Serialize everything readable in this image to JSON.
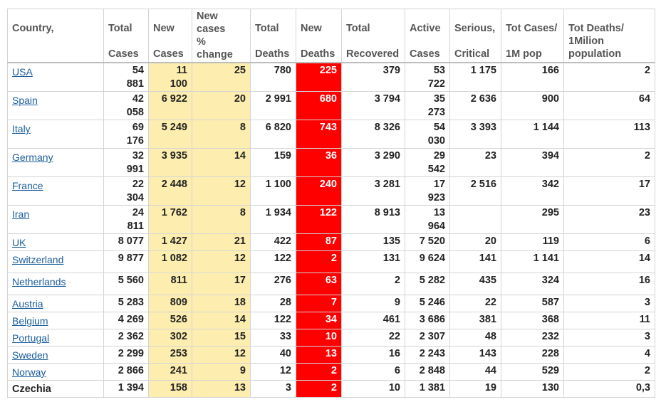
{
  "headers": {
    "country": "Country,",
    "total_cases": [
      "Total",
      "Cases"
    ],
    "new_cases": [
      "New",
      "Cases"
    ],
    "pct_change": [
      "New",
      "cases",
      "%",
      "change"
    ],
    "total_deaths": [
      "Total",
      "Deaths"
    ],
    "new_deaths": [
      "New",
      "Deaths"
    ],
    "total_recovered": [
      "Total",
      "Recovered"
    ],
    "active_cases": [
      "Active",
      "Cases"
    ],
    "serious": [
      "Serious,",
      "Critical"
    ],
    "tot_cases_1m": [
      "Tot Cases/",
      "1M pop"
    ],
    "tot_deaths_1m": [
      "Tot Deaths/",
      "1Milion",
      "population"
    ]
  },
  "colors": {
    "new_cases_bg": "#fdeeb0",
    "new_deaths_bg": "#ff0000",
    "link": "#1a5d9c"
  },
  "rows": [
    {
      "country": "USA",
      "link": true,
      "total_cases": [
        "54",
        "881"
      ],
      "new_cases": [
        "11",
        "100"
      ],
      "pct_change": "25",
      "total_deaths": "780",
      "new_deaths": "225",
      "recovered": "379",
      "active": [
        "53",
        "722"
      ],
      "serious": "1 175",
      "cases_1m": "166",
      "deaths_1m": "2"
    },
    {
      "country": "Spain",
      "link": true,
      "total_cases": [
        "42",
        "058"
      ],
      "new_cases": [
        "6 922"
      ],
      "pct_change": "20",
      "total_deaths": "2 991",
      "new_deaths": "680",
      "recovered": "3 794",
      "active": [
        "35",
        "273"
      ],
      "serious": "2 636",
      "cases_1m": "900",
      "deaths_1m": "64"
    },
    {
      "country": "Italy",
      "link": true,
      "total_cases": [
        "69",
        "176"
      ],
      "new_cases": [
        "5 249"
      ],
      "pct_change": "8",
      "total_deaths": "6 820",
      "new_deaths": "743",
      "recovered": "8 326",
      "active": [
        "54",
        "030"
      ],
      "serious": "3 393",
      "cases_1m": "1 144",
      "deaths_1m": "113"
    },
    {
      "country": "Germany",
      "link": true,
      "total_cases": [
        "32",
        "991"
      ],
      "new_cases": [
        "3 935"
      ],
      "pct_change": "14",
      "total_deaths": "159",
      "new_deaths": "36",
      "recovered": "3 290",
      "active": [
        "29",
        "542"
      ],
      "serious": "23",
      "cases_1m": "394",
      "deaths_1m": "2"
    },
    {
      "country": "France",
      "link": true,
      "total_cases": [
        "22",
        "304"
      ],
      "new_cases": [
        "2 448"
      ],
      "pct_change": "12",
      "total_deaths": "1 100",
      "new_deaths": "240",
      "recovered": "3 281",
      "active": [
        "17",
        "923"
      ],
      "serious": "2 516",
      "cases_1m": "342",
      "deaths_1m": "17"
    },
    {
      "country": "Iran",
      "link": true,
      "total_cases": [
        "24",
        "811"
      ],
      "new_cases": [
        "1 762"
      ],
      "pct_change": "8",
      "total_deaths": "1 934",
      "new_deaths": "122",
      "recovered": "8 913",
      "active": [
        "13",
        "964"
      ],
      "serious": "",
      "cases_1m": "295",
      "deaths_1m": "23"
    },
    {
      "country": "UK",
      "link": true,
      "total_cases": [
        "8 077"
      ],
      "new_cases": [
        "1 427"
      ],
      "pct_change": "21",
      "total_deaths": "422",
      "new_deaths": "87",
      "recovered": "135",
      "active": [
        "7 520"
      ],
      "serious": "20",
      "cases_1m": "119",
      "deaths_1m": "6"
    },
    {
      "country": "Switzerland",
      "link": true,
      "total_cases": [
        "9 877"
      ],
      "new_cases": [
        "1 082"
      ],
      "pct_change": "12",
      "total_deaths": "122",
      "new_deaths": "2",
      "recovered": "131",
      "active": [
        "9 624"
      ],
      "serious": "141",
      "cases_1m": "1 141",
      "deaths_1m": "14"
    },
    {
      "country": "Netherlands",
      "link": true,
      "total_cases": [
        "5 560"
      ],
      "new_cases": [
        "811"
      ],
      "pct_change": "17",
      "total_deaths": "276",
      "new_deaths": "63",
      "recovered": "2",
      "active": [
        "5 282"
      ],
      "serious": "435",
      "cases_1m": "324",
      "deaths_1m": "16"
    },
    {
      "country": "Austria",
      "link": true,
      "total_cases": [
        "5 283"
      ],
      "new_cases": [
        "809"
      ],
      "pct_change": "18",
      "total_deaths": "28",
      "new_deaths": "7",
      "recovered": "9",
      "active": [
        "5 246"
      ],
      "serious": "22",
      "cases_1m": "587",
      "deaths_1m": "3"
    },
    {
      "country": "Belgium",
      "link": true,
      "total_cases": [
        "4 269"
      ],
      "new_cases": [
        "526"
      ],
      "pct_change": "14",
      "total_deaths": "122",
      "new_deaths": "34",
      "recovered": "461",
      "active": [
        "3 686"
      ],
      "serious": "381",
      "cases_1m": "368",
      "deaths_1m": "11"
    },
    {
      "country": "Portugal",
      "link": true,
      "total_cases": [
        "2 362"
      ],
      "new_cases": [
        "302"
      ],
      "pct_change": "15",
      "total_deaths": "33",
      "new_deaths": "10",
      "recovered": "22",
      "active": [
        "2 307"
      ],
      "serious": "48",
      "cases_1m": "232",
      "deaths_1m": "3"
    },
    {
      "country": "Sweden",
      "link": true,
      "total_cases": [
        "2 299"
      ],
      "new_cases": [
        "253"
      ],
      "pct_change": "12",
      "total_deaths": "40",
      "new_deaths": "13",
      "recovered": "16",
      "active": [
        "2 243"
      ],
      "serious": "143",
      "cases_1m": "228",
      "deaths_1m": "4"
    },
    {
      "country": "Norway",
      "link": true,
      "total_cases": [
        "2 866"
      ],
      "new_cases": [
        "241"
      ],
      "pct_change": "9",
      "total_deaths": "12",
      "new_deaths": "2",
      "recovered": "6",
      "active": [
        "2 848"
      ],
      "serious": "44",
      "cases_1m": "529",
      "deaths_1m": "2"
    },
    {
      "country": "Czechia",
      "link": false,
      "total_cases": [
        "1 394"
      ],
      "new_cases": [
        "158"
      ],
      "pct_change": "13",
      "total_deaths": "3",
      "new_deaths": "2",
      "recovered": "10",
      "active": [
        "1 381"
      ],
      "serious": "19",
      "cases_1m": "130",
      "deaths_1m": "0,3"
    }
  ]
}
